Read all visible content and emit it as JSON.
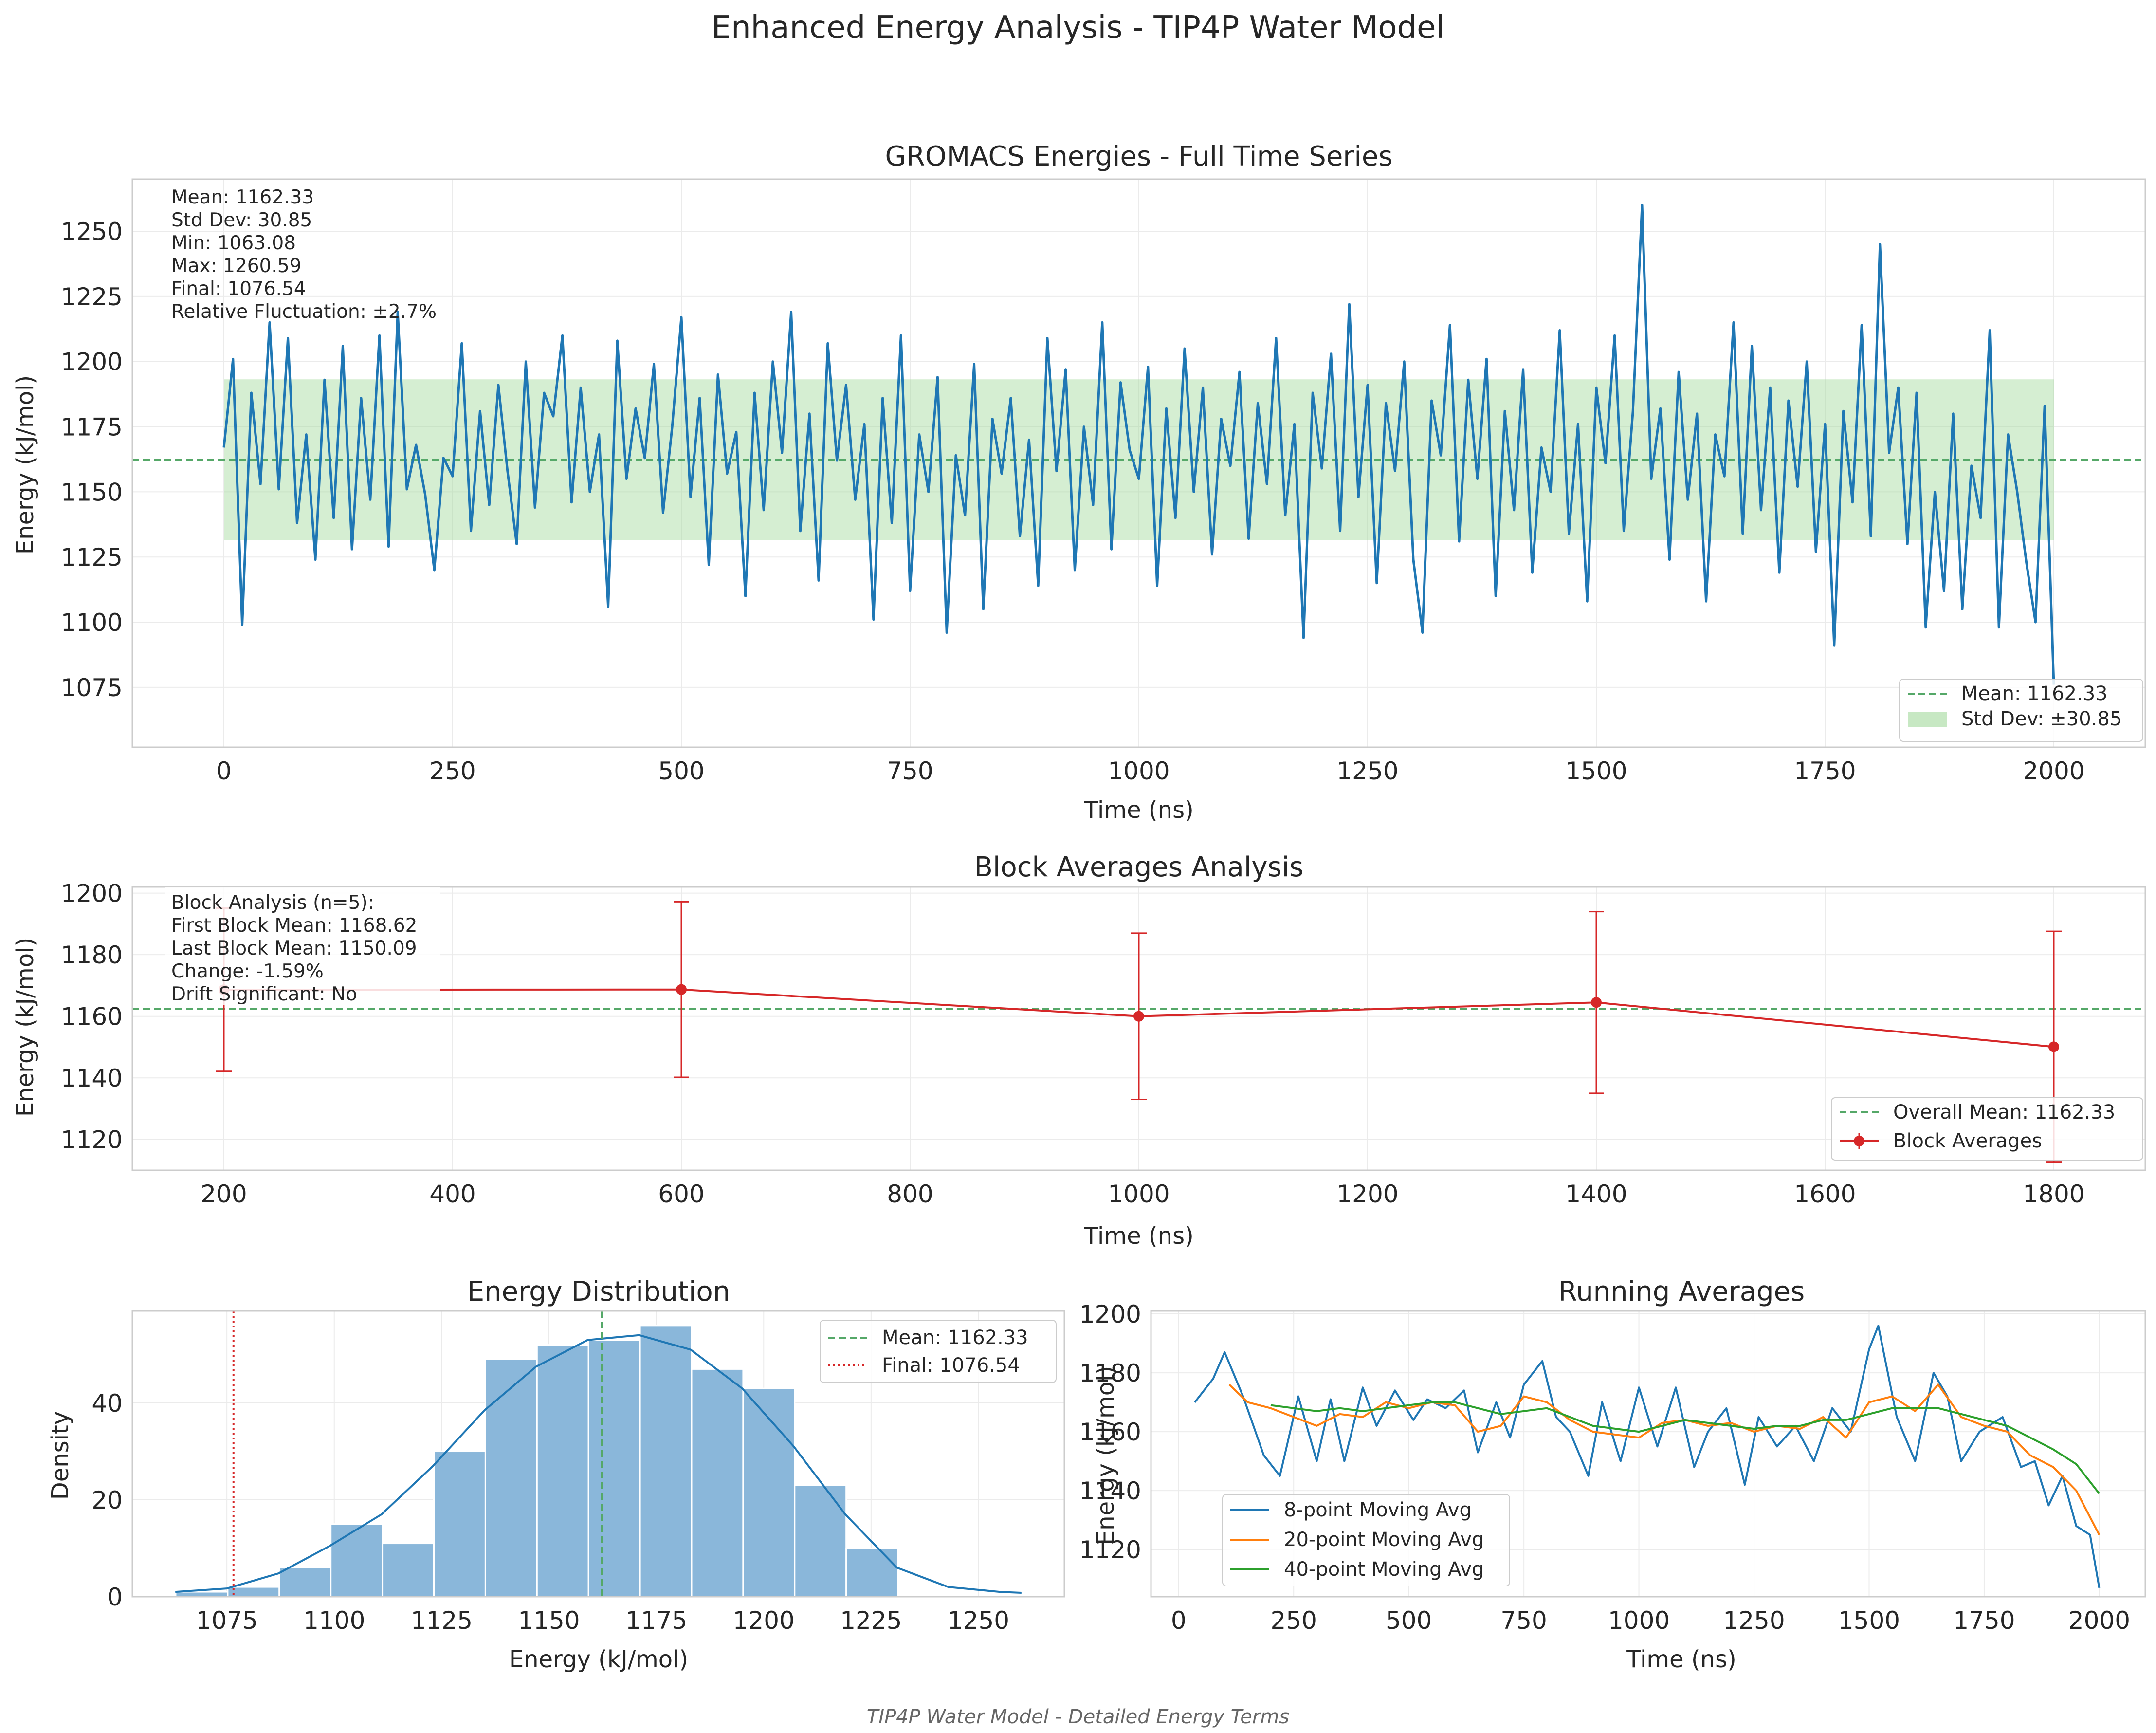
{
  "figure": {
    "title": "Enhanced Energy Analysis - TIP4P Water Model",
    "footer": "TIP4P Water Model - Detailed Energy Terms"
  },
  "colors": {
    "blue": "#1f77b4",
    "orange": "#ff7f0e",
    "green": "#2ca02c",
    "red": "#d62728",
    "mean_line": "#55a868",
    "std_fill": "#a1d99b",
    "hist_fill": "#8ab7da",
    "axis_frame": "#cccccc",
    "grid": "#ebebeb"
  },
  "panels": {
    "timeseries": {
      "title": "GROMACS Energies - Full Time Series",
      "xlabel": "Time (ns)",
      "ylabel": "Energy (kJ/mol)",
      "stats": [
        "Mean: 1162.33",
        "Std Dev: 30.85",
        "Min: 1063.08",
        "Max: 1260.59",
        "Final: 1076.54",
        "Relative Fluctuation: ±2.7%"
      ],
      "legend": [
        "Mean: 1162.33",
        "Std Dev: ±30.85"
      ]
    },
    "blocks": {
      "title": "Block Averages Analysis",
      "xlabel": "Time (ns)",
      "ylabel": "Energy (kJ/mol)",
      "stats": [
        "Block Analysis (n=5):",
        "First Block Mean: 1168.62",
        "Last Block Mean: 1150.09",
        "Change: -1.59%",
        "Drift Significant: No"
      ],
      "legend": [
        "Overall Mean: 1162.33",
        "Block Averages"
      ]
    },
    "distribution": {
      "title": "Energy Distribution",
      "xlabel": "Energy (kJ/mol)",
      "ylabel": "Density",
      "legend": [
        "Mean: 1162.33",
        "Final: 1076.54"
      ]
    },
    "running": {
      "title": "Running Averages",
      "xlabel": "Time (ns)",
      "ylabel": "Energy (kJ/mol)",
      "legend": [
        "8-point Moving Avg",
        "20-point Moving Avg",
        "40-point Moving Avg"
      ]
    }
  },
  "chart_data": [
    {
      "type": "line",
      "title": "GROMACS Energies - Full Time Series",
      "xlabel": "Time (ns)",
      "ylabel": "Energy (kJ/mol)",
      "xlim": [
        -100,
        2100
      ],
      "ylim": [
        1052,
        1270
      ],
      "xticks": [
        0,
        250,
        500,
        750,
        1000,
        1250,
        1500,
        1750,
        2000
      ],
      "yticks": [
        1075,
        1100,
        1125,
        1150,
        1175,
        1200,
        1225,
        1250
      ],
      "mean": 1162.33,
      "std": 30.85,
      "grid": true,
      "legend_position": "lower right",
      "series": [
        {
          "name": "Energy",
          "x": [
            0,
            10,
            20,
            30,
            40,
            50,
            60,
            70,
            80,
            90,
            100,
            110,
            120,
            130,
            140,
            150,
            160,
            170,
            180,
            190,
            200,
            210,
            220,
            230,
            240,
            250,
            260,
            270,
            280,
            290,
            300,
            310,
            320,
            330,
            340,
            350,
            360,
            370,
            380,
            390,
            400,
            410,
            420,
            430,
            440,
            450,
            460,
            470,
            480,
            490,
            500,
            510,
            520,
            530,
            540,
            550,
            560,
            570,
            580,
            590,
            600,
            610,
            620,
            630,
            640,
            650,
            660,
            670,
            680,
            690,
            700,
            710,
            720,
            730,
            740,
            750,
            760,
            770,
            780,
            790,
            800,
            810,
            820,
            830,
            840,
            850,
            860,
            870,
            880,
            890,
            900,
            910,
            920,
            930,
            940,
            950,
            960,
            970,
            980,
            990,
            1000,
            1010,
            1020,
            1030,
            1040,
            1050,
            1060,
            1070,
            1080,
            1090,
            1100,
            1110,
            1120,
            1130,
            1140,
            1150,
            1160,
            1170,
            1180,
            1190,
            1200,
            1210,
            1220,
            1230,
            1240,
            1250,
            1260,
            1270,
            1280,
            1290,
            1300,
            1310,
            1320,
            1330,
            1340,
            1350,
            1360,
            1370,
            1380,
            1390,
            1400,
            1410,
            1420,
            1430,
            1440,
            1450,
            1460,
            1470,
            1480,
            1490,
            1500,
            1510,
            1520,
            1530,
            1540,
            1550,
            1560,
            1570,
            1580,
            1590,
            1600,
            1610,
            1620,
            1630,
            1640,
            1650,
            1660,
            1670,
            1680,
            1690,
            1700,
            1710,
            1720,
            1730,
            1740,
            1750,
            1760,
            1770,
            1780,
            1790,
            1800,
            1810,
            1820,
            1830,
            1840,
            1850,
            1860,
            1870,
            1880,
            1890,
            1900,
            1910,
            1920,
            1930,
            1940,
            1950,
            1960,
            1970,
            1980,
            1990,
            2000
          ],
          "y": [
            1167,
            1201,
            1099,
            1188,
            1153,
            1215,
            1151,
            1209,
            1138,
            1172,
            1124,
            1193,
            1140,
            1206,
            1128,
            1186,
            1147,
            1210,
            1129,
            1219,
            1151,
            1168,
            1149,
            1120,
            1163,
            1156,
            1207,
            1135,
            1181,
            1145,
            1191,
            1158,
            1130,
            1200,
            1144,
            1188,
            1179,
            1210,
            1146,
            1190,
            1150,
            1172,
            1106,
            1208,
            1155,
            1182,
            1163,
            1199,
            1142,
            1175,
            1217,
            1148,
            1186,
            1122,
            1195,
            1157,
            1173,
            1110,
            1188,
            1143,
            1200,
            1165,
            1219,
            1135,
            1180,
            1116,
            1207,
            1162,
            1191,
            1147,
            1176,
            1101,
            1186,
            1138,
            1210,
            1112,
            1172,
            1150,
            1194,
            1096,
            1164,
            1141,
            1199,
            1105,
            1178,
            1157,
            1186,
            1133,
            1170,
            1114,
            1209,
            1158,
            1197,
            1120,
            1175,
            1145,
            1215,
            1128,
            1192,
            1166,
            1155,
            1198,
            1114,
            1182,
            1140,
            1205,
            1150,
            1190,
            1126,
            1178,
            1160,
            1196,
            1132,
            1184,
            1153,
            1209,
            1141,
            1176,
            1094,
            1188,
            1159,
            1203,
            1135,
            1222,
            1148,
            1191,
            1115,
            1184,
            1158,
            1200,
            1124,
            1096,
            1185,
            1164,
            1214,
            1131,
            1193,
            1155,
            1201,
            1110,
            1181,
            1143,
            1197,
            1119,
            1167,
            1150,
            1212,
            1134,
            1176,
            1108,
            1190,
            1161,
            1210,
            1135,
            1181,
            1260,
            1155,
            1182,
            1124,
            1196,
            1147,
            1180,
            1108,
            1172,
            1156,
            1215,
            1134,
            1206,
            1143,
            1190,
            1119,
            1185,
            1152,
            1200,
            1127,
            1176,
            1091,
            1181,
            1146,
            1214,
            1133,
            1245,
            1165,
            1190,
            1130,
            1188,
            1098,
            1150,
            1112,
            1180,
            1105,
            1160,
            1140,
            1212,
            1098,
            1172,
            1150,
            1123,
            1100,
            1183,
            1076
          ]
        }
      ]
    },
    {
      "type": "line",
      "title": "Block Averages Analysis",
      "xlabel": "Time (ns)",
      "ylabel": "Energy (kJ/mol)",
      "xlim": [
        120,
        1880
      ],
      "ylim": [
        1110,
        1202
      ],
      "xticks": [
        200,
        400,
        600,
        800,
        1000,
        1200,
        1400,
        1600,
        1800
      ],
      "yticks": [
        1120,
        1140,
        1160,
        1180,
        1200
      ],
      "overall_mean": 1162.33,
      "grid": true,
      "legend_position": "lower right",
      "series": [
        {
          "name": "Block Averages",
          "x": [
            200,
            600,
            1000,
            1400,
            1800
          ],
          "y": [
            1168.62,
            1168.7,
            1160,
            1164.5,
            1150.09
          ],
          "err": [
            26.5,
            28.5,
            27,
            29.5,
            37.5
          ]
        }
      ]
    },
    {
      "type": "bar",
      "title": "Energy Distribution",
      "xlabel": "Energy (kJ/mol)",
      "ylabel": "Density",
      "xlim": [
        1053,
        1270
      ],
      "ylim": [
        0,
        59
      ],
      "xticks": [
        1075,
        1100,
        1125,
        1150,
        1175,
        1200,
        1225,
        1250
      ],
      "yticks": [
        0,
        20,
        40
      ],
      "bin_edges": [
        1063.08,
        1075.2,
        1087.2,
        1099.2,
        1111.2,
        1123.2,
        1135.2,
        1147.2,
        1159.2,
        1171.2,
        1183.2,
        1195.2,
        1207.2,
        1219.2,
        1231.2
      ],
      "bin_values": [
        1,
        2,
        6,
        15,
        11,
        30,
        49,
        52,
        53,
        56,
        47,
        43,
        23,
        10
      ],
      "kde": {
        "x": [
          1063,
          1075,
          1087,
          1099,
          1111,
          1123,
          1135,
          1147,
          1159,
          1171,
          1183,
          1195,
          1207,
          1219,
          1231,
          1243,
          1255,
          1260
        ],
        "y": [
          1,
          1.7,
          4.8,
          10.5,
          17,
          27,
          38.5,
          47.5,
          53,
          54,
          51,
          43,
          31,
          17,
          6,
          2,
          1,
          0.8
        ]
      },
      "mean": 1162.33,
      "final": 1076.54,
      "grid": true,
      "legend_position": "top-right"
    },
    {
      "type": "line",
      "title": "Running Averages",
      "xlabel": "Time (ns)",
      "ylabel": "Energy (kJ/mol)",
      "xlim": [
        -60,
        2100
      ],
      "ylim": [
        1104,
        1201
      ],
      "xticks": [
        0,
        250,
        500,
        750,
        1000,
        1250,
        1500,
        1750,
        2000
      ],
      "yticks": [
        1120,
        1140,
        1160,
        1180,
        1200
      ],
      "grid": true,
      "legend_position": "lower left",
      "series": [
        {
          "name": "8-point Moving Avg",
          "x": [
            35,
            75,
            100,
            140,
            185,
            220,
            260,
            300,
            330,
            360,
            400,
            430,
            470,
            510,
            540,
            580,
            620,
            650,
            690,
            720,
            750,
            790,
            820,
            850,
            890,
            920,
            960,
            1000,
            1040,
            1080,
            1120,
            1150,
            1190,
            1230,
            1260,
            1300,
            1340,
            1380,
            1420,
            1460,
            1500,
            1520,
            1560,
            1600,
            1640,
            1670,
            1700,
            1740,
            1790,
            1830,
            1860,
            1890,
            1920,
            1950,
            1980,
            2000
          ],
          "y": [
            1170,
            1178,
            1187,
            1172,
            1152,
            1145,
            1172,
            1150,
            1171,
            1150,
            1175,
            1162,
            1174,
            1164,
            1171,
            1168,
            1174,
            1153,
            1170,
            1158,
            1176,
            1184,
            1165,
            1160,
            1145,
            1170,
            1150,
            1175,
            1155,
            1175,
            1148,
            1160,
            1168,
            1142,
            1165,
            1155,
            1162,
            1150,
            1168,
            1160,
            1188,
            1196,
            1165,
            1150,
            1180,
            1172,
            1150,
            1160,
            1165,
            1148,
            1150,
            1135,
            1145,
            1128,
            1125,
            1107
          ]
        },
        {
          "name": "20-point Moving Avg",
          "x": [
            110,
            150,
            200,
            250,
            300,
            350,
            400,
            450,
            500,
            550,
            600,
            650,
            700,
            750,
            800,
            850,
            900,
            950,
            1000,
            1050,
            1100,
            1150,
            1200,
            1250,
            1300,
            1350,
            1400,
            1450,
            1500,
            1550,
            1600,
            1650,
            1700,
            1750,
            1800,
            1850,
            1900,
            1950,
            2000
          ],
          "y": [
            1176,
            1170,
            1168,
            1165,
            1162,
            1166,
            1165,
            1170,
            1168,
            1170,
            1169,
            1160,
            1162,
            1172,
            1170,
            1164,
            1160,
            1159,
            1158,
            1163,
            1164,
            1162,
            1163,
            1160,
            1162,
            1161,
            1165,
            1158,
            1170,
            1172,
            1167,
            1176,
            1165,
            1162,
            1160,
            1152,
            1148,
            1140,
            1125
          ]
        },
        {
          "name": "40-point Moving Avg",
          "x": [
            200,
            250,
            300,
            350,
            400,
            450,
            500,
            550,
            600,
            650,
            700,
            750,
            800,
            850,
            900,
            950,
            1000,
            1050,
            1100,
            1150,
            1200,
            1250,
            1300,
            1350,
            1400,
            1450,
            1500,
            1550,
            1600,
            1650,
            1700,
            1750,
            1800,
            1850,
            1900,
            1950,
            2000
          ],
          "y": [
            1169,
            1168,
            1167,
            1168,
            1167,
            1168,
            1169,
            1170,
            1170,
            1168,
            1166,
            1167,
            1168,
            1165,
            1162,
            1161,
            1160,
            1162,
            1164,
            1163,
            1162,
            1161,
            1162,
            1162,
            1164,
            1164,
            1166,
            1168,
            1168,
            1168,
            1166,
            1164,
            1162,
            1158,
            1154,
            1149,
            1139
          ]
        }
      ]
    }
  ]
}
